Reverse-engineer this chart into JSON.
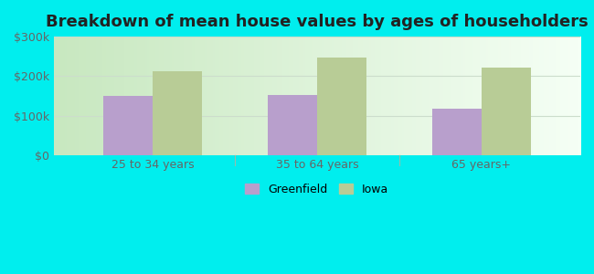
{
  "title": "Breakdown of mean house values by ages of householders",
  "categories": [
    "25 to 34 years",
    "35 to 64 years",
    "65 years+"
  ],
  "greenfield_values": [
    150000,
    152000,
    118000
  ],
  "iowa_values": [
    213000,
    248000,
    222000
  ],
  "ylim": [
    0,
    300000
  ],
  "yticks": [
    0,
    100000,
    200000,
    300000
  ],
  "ytick_labels": [
    "$0",
    "$100k",
    "$200k",
    "$300k"
  ],
  "greenfield_color": "#b89fcc",
  "iowa_color": "#b8cc96",
  "background_color": "#00eeee",
  "legend_greenfield": "Greenfield",
  "legend_iowa": "Iowa",
  "bar_width": 0.3,
  "title_fontsize": 13,
  "tick_fontsize": 9,
  "legend_fontsize": 9,
  "separator_color": "#aaccaa",
  "grid_color": "#dddddd",
  "plot_bg_left": "#d4ecd4",
  "plot_bg_right": "#f0f8f0"
}
